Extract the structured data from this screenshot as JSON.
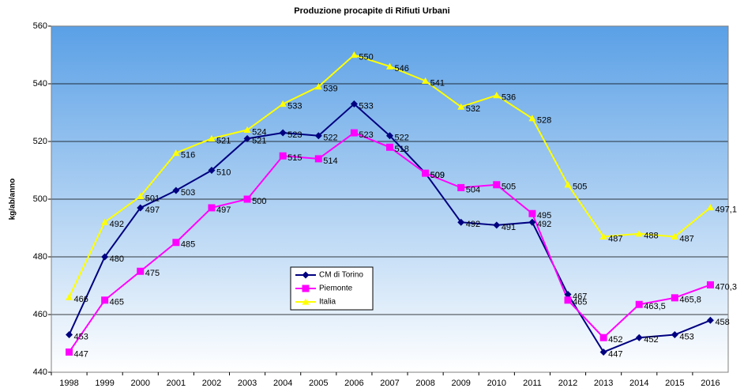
{
  "chart_data": {
    "type": "line",
    "title": "Produzione procapite di Rifiuti Urbani",
    "y_label": "kg/ab/anno",
    "categories": [
      "1998",
      "1999",
      "2000",
      "2001",
      "2002",
      "2003",
      "2004",
      "2005",
      "2006",
      "2007",
      "2008",
      "2009",
      "2010",
      "2011",
      "2012",
      "2013",
      "2014",
      "2015",
      "2016"
    ],
    "series": [
      {
        "name": "CM di Torino",
        "color": "#000080",
        "marker": "diamond",
        "values": [
          453,
          480,
          497,
          503,
          510,
          521,
          523,
          522,
          533,
          522,
          509,
          492,
          491,
          492,
          467,
          447,
          452,
          453,
          458
        ]
      },
      {
        "name": "Piemonte",
        "color": "#ff00ff",
        "marker": "square",
        "values": [
          447,
          465,
          475,
          485,
          497,
          500,
          515,
          514,
          523,
          518,
          509,
          504,
          505,
          495,
          465,
          452,
          463.5,
          465.8,
          470.3
        ],
        "value_labels": [
          "447",
          "465",
          "475",
          "485",
          "497",
          "500",
          "515",
          "514",
          "523",
          "518",
          "509",
          "504",
          "505",
          "495",
          "465",
          "452",
          "463,5",
          "465,8",
          "470,3"
        ]
      },
      {
        "name": "Italia",
        "color": "#ffff00",
        "marker": "triangle",
        "values": [
          466,
          492,
          501,
          516,
          521,
          524,
          533,
          539,
          550,
          546,
          541,
          532,
          536,
          528,
          505,
          487,
          488,
          487,
          497.1
        ],
        "value_labels": [
          "466",
          "492",
          "501",
          "516",
          "521",
          "524",
          "533",
          "539",
          "550",
          "546",
          "541",
          "532",
          "536",
          "528",
          "505",
          "487",
          "488",
          "487",
          "497,1"
        ]
      }
    ],
    "ylim": [
      440,
      560
    ],
    "yticks": [
      440,
      460,
      480,
      500,
      520,
      540,
      560
    ],
    "grid": true
  }
}
